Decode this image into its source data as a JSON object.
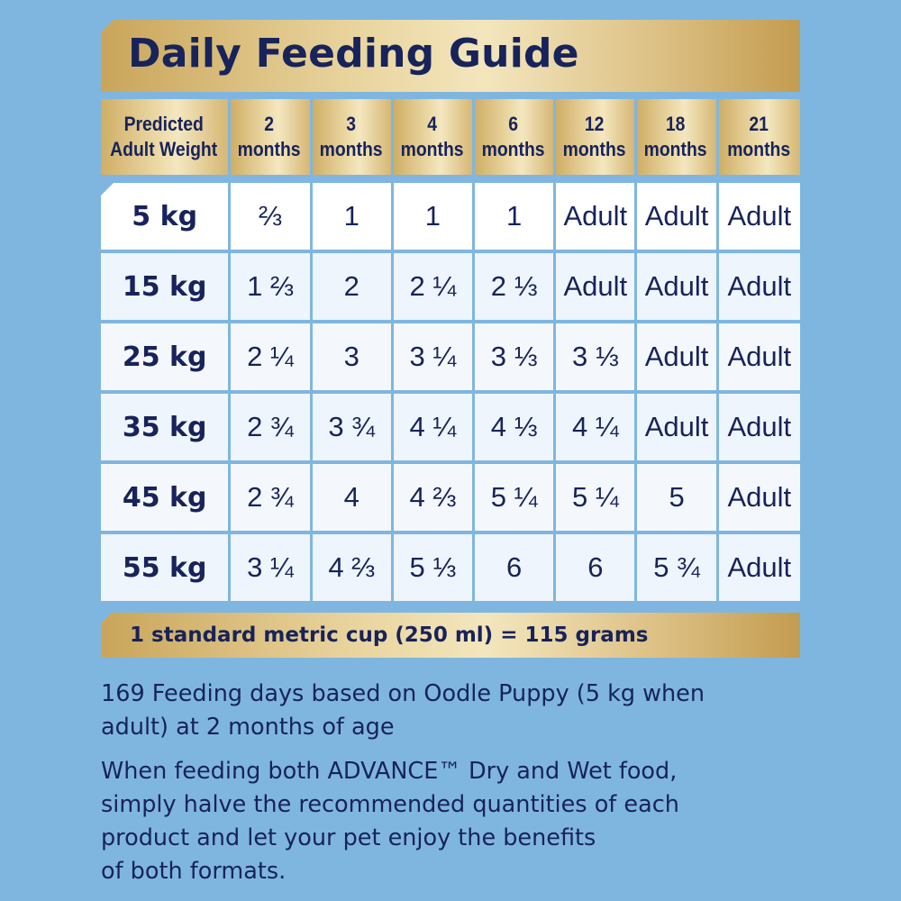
{
  "title": "Daily Feeding Guide",
  "header": {
    "weight_line1": "Predicted",
    "weight_line2": "Adult Weight",
    "ages": [
      {
        "num": "2",
        "unit": "months"
      },
      {
        "num": "3",
        "unit": "months"
      },
      {
        "num": "4",
        "unit": "months"
      },
      {
        "num": "6",
        "unit": "months"
      },
      {
        "num": "12",
        "unit": "months"
      },
      {
        "num": "18",
        "unit": "months"
      },
      {
        "num": "21",
        "unit": "months"
      }
    ]
  },
  "rows": [
    {
      "weight": "5 kg",
      "values": [
        "⅔",
        "1",
        "1",
        "1",
        "Adult",
        "Adult",
        "Adult"
      ]
    },
    {
      "weight": "15 kg",
      "values": [
        "1 ⅔",
        "2",
        "2 ¼",
        "2 ⅓",
        "Adult",
        "Adult",
        "Adult"
      ]
    },
    {
      "weight": "25 kg",
      "values": [
        "2 ¼",
        "3",
        "3 ¼",
        "3 ⅓",
        "3 ⅓",
        "Adult",
        "Adult"
      ]
    },
    {
      "weight": "35 kg",
      "values": [
        "2 ¾",
        "3 ¾",
        "4 ¼",
        "4 ⅓",
        "4 ¼",
        "Adult",
        "Adult"
      ]
    },
    {
      "weight": "45 kg",
      "values": [
        "2 ¾",
        "4",
        "4 ⅔",
        "5 ¼",
        "5 ¼",
        "5",
        "Adult"
      ]
    },
    {
      "weight": "55 kg",
      "values": [
        "3 ¼",
        "4 ⅔",
        "5 ⅓",
        "6",
        "6",
        "5 ¾",
        "Adult"
      ]
    }
  ],
  "cup_note": "1 standard metric cup (250 ml) = 115 grams",
  "notes": {
    "feeding_days_line1": "169 Feeding days based on Oodle Puppy (5 kg when",
    "feeding_days_line2": "adult) at 2 months of age",
    "dual_line1": "When feeding both ADVANCE™ Dry and Wet food,",
    "dual_line2": "simply halve the recommended quantities of each",
    "dual_line3": "product and let your pet enjoy the benefits",
    "dual_line4": "of both formats."
  },
  "colors": {
    "background": "#7fb6e0",
    "navy_text": "#17235a",
    "gold_light": "#f3e6bd",
    "gold_dark": "#c9a55a",
    "cell_white": "#ffffff",
    "cell_tint": "#eef5fc"
  }
}
